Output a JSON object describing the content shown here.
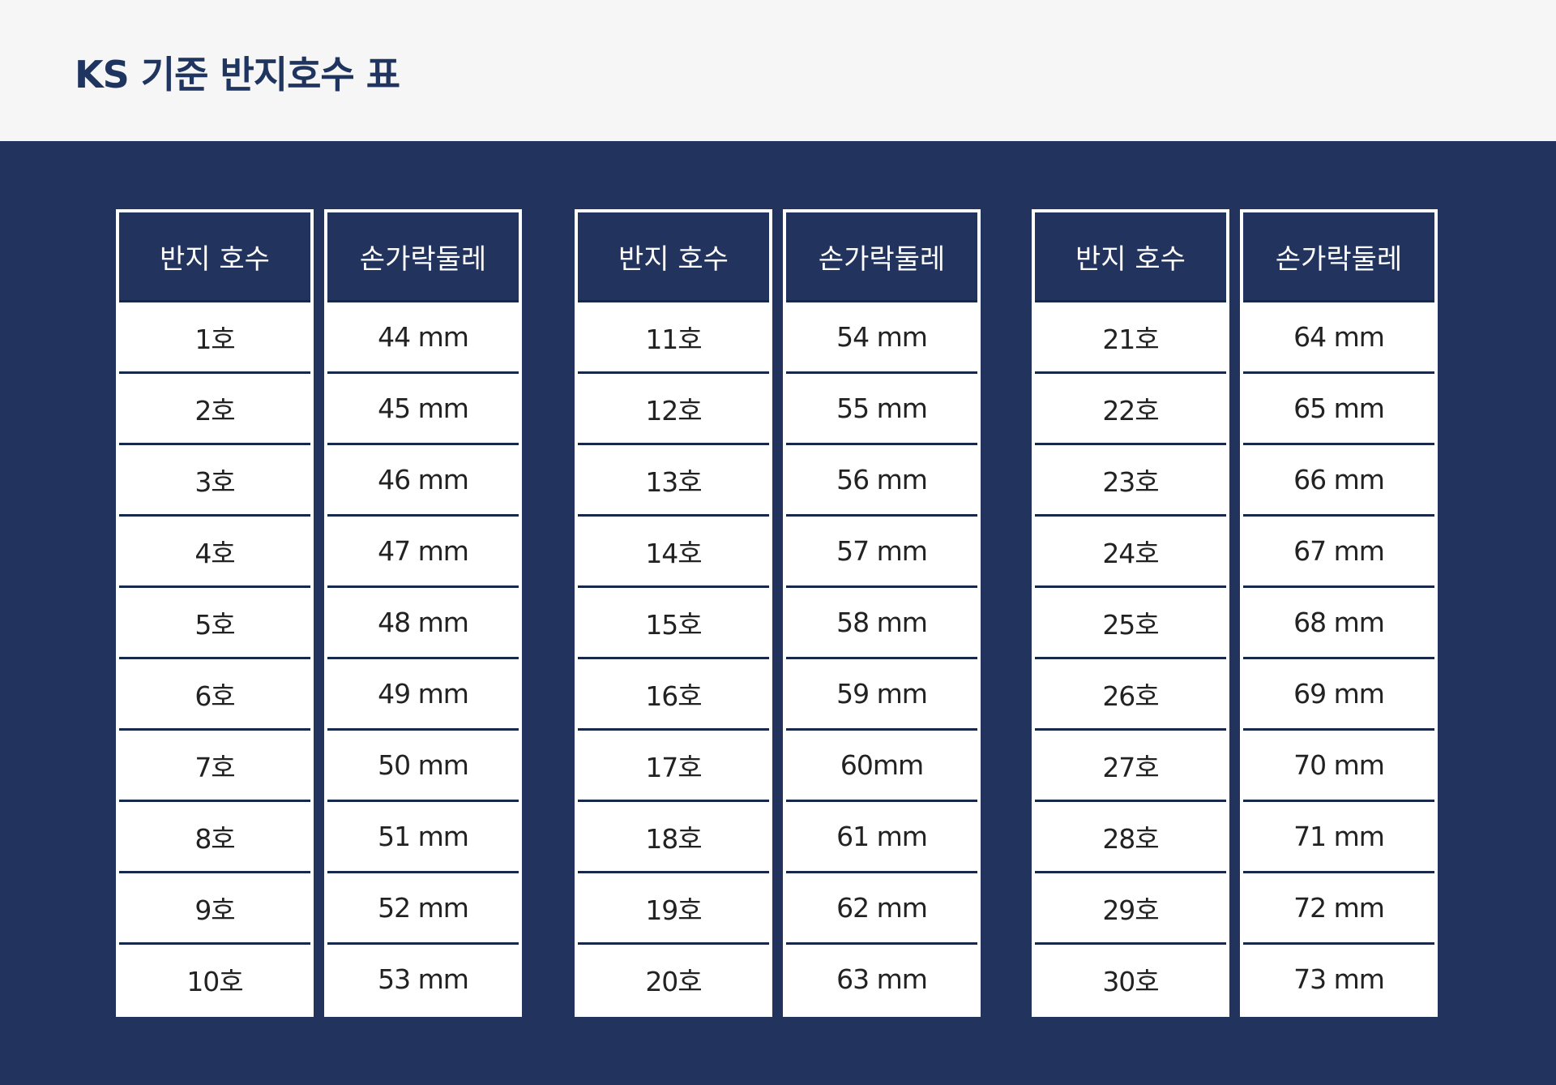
{
  "header": {
    "title": "KS 기준 반지호수 표"
  },
  "tables": [
    {
      "headers": [
        "반지 호수",
        "손가락둘레"
      ],
      "rows": [
        [
          "1호",
          "44 mm"
        ],
        [
          "2호",
          "45 mm"
        ],
        [
          "3호",
          "46 mm"
        ],
        [
          "4호",
          "47 mm"
        ],
        [
          "5호",
          "48 mm"
        ],
        [
          "6호",
          "49 mm"
        ],
        [
          "7호",
          "50 mm"
        ],
        [
          "8호",
          "51 mm"
        ],
        [
          "9호",
          "52 mm"
        ],
        [
          "10호",
          "53 mm"
        ]
      ]
    },
    {
      "headers": [
        "반지 호수",
        "손가락둘레"
      ],
      "rows": [
        [
          "11호",
          "54 mm"
        ],
        [
          "12호",
          "55 mm"
        ],
        [
          "13호",
          "56 mm"
        ],
        [
          "14호",
          "57 mm"
        ],
        [
          "15호",
          "58 mm"
        ],
        [
          "16호",
          "59 mm"
        ],
        [
          "17호",
          "60mm"
        ],
        [
          "18호",
          "61 mm"
        ],
        [
          "19호",
          "62 mm"
        ],
        [
          "20호",
          "63 mm"
        ]
      ]
    },
    {
      "headers": [
        "반지 호수",
        "손가락둘레"
      ],
      "rows": [
        [
          "21호",
          "64 mm"
        ],
        [
          "22호",
          "65 mm"
        ],
        [
          "23호",
          "66 mm"
        ],
        [
          "24호",
          "67 mm"
        ],
        [
          "25호",
          "68 mm"
        ],
        [
          "26호",
          "69 mm"
        ],
        [
          "27호",
          "70 mm"
        ],
        [
          "28호",
          "71 mm"
        ],
        [
          "29호",
          "72 mm"
        ],
        [
          "30호",
          "73 mm"
        ]
      ]
    }
  ]
}
